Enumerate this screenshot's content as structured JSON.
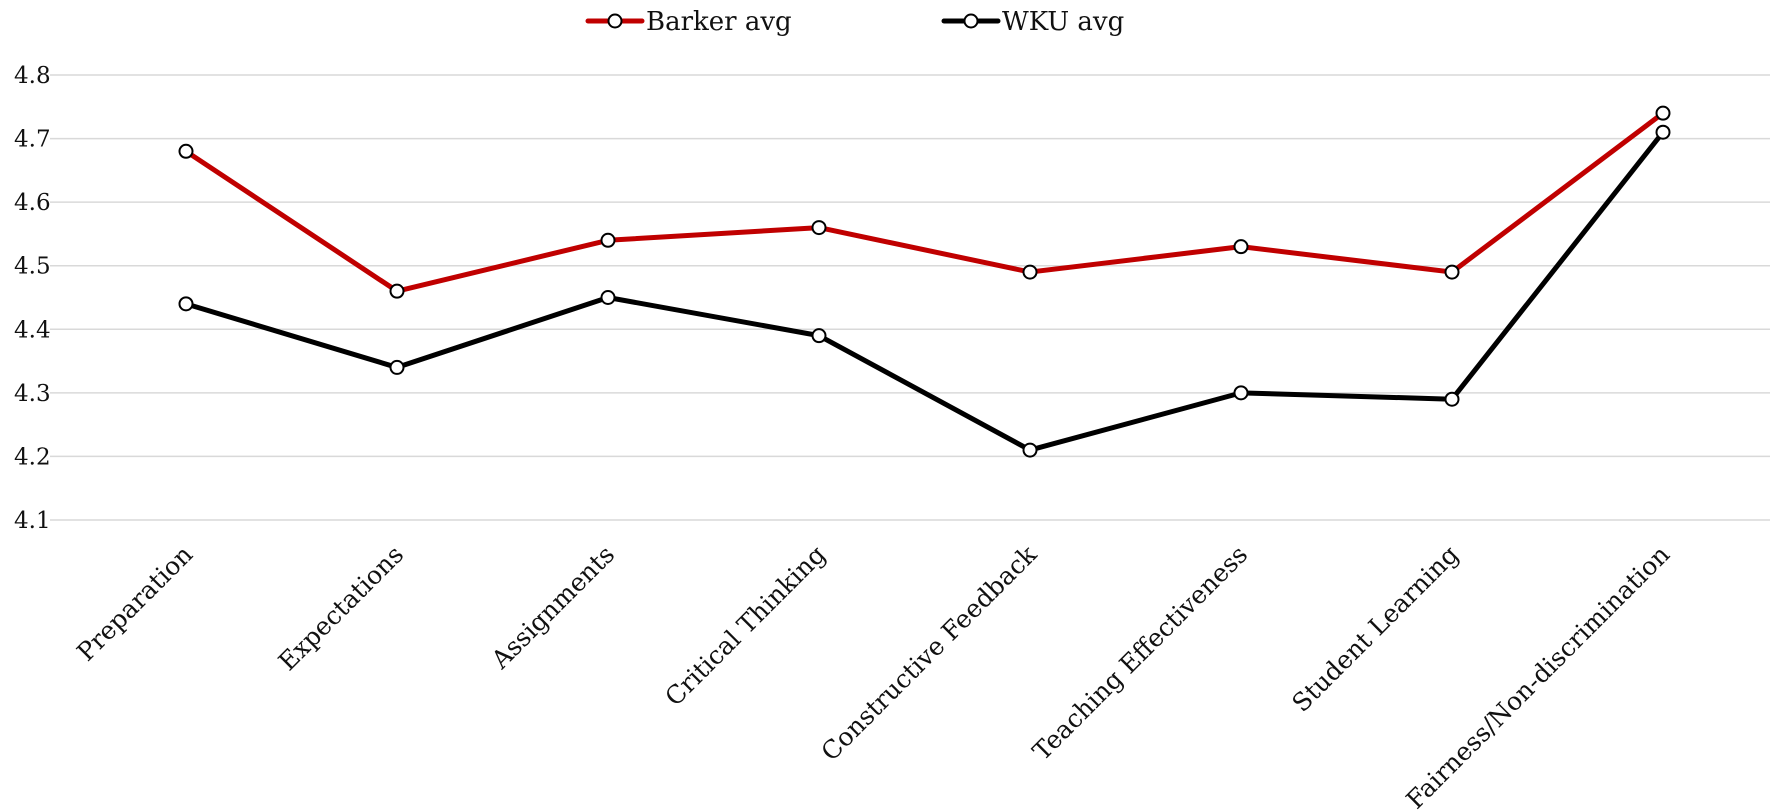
{
  "chart_data": {
    "type": "line",
    "title": "",
    "xlabel": "",
    "ylabel": "",
    "ylim": [
      4.1,
      4.8
    ],
    "yticks": [
      "4.1",
      "4.2",
      "4.3",
      "4.4",
      "4.5",
      "4.6",
      "4.7",
      "4.8"
    ],
    "grid": true,
    "legend": "top-center",
    "categories": [
      "Preparation",
      "Expectations",
      "Assignments",
      "Critical Thinking",
      "Constructive Feedback",
      "Teaching Effectiveness",
      "Student Learning",
      "Fairness/Non-discrimination"
    ],
    "series": [
      {
        "name": "Barker avg",
        "color": "#c00000",
        "marker": "circle-open",
        "values": [
          4.68,
          4.46,
          4.54,
          4.56,
          4.49,
          4.53,
          4.49,
          4.74
        ]
      },
      {
        "name": "WKU avg",
        "color": "#000000",
        "marker": "circle-open",
        "values": [
          4.44,
          4.34,
          4.45,
          4.39,
          4.21,
          4.3,
          4.29,
          4.71
        ]
      }
    ]
  }
}
